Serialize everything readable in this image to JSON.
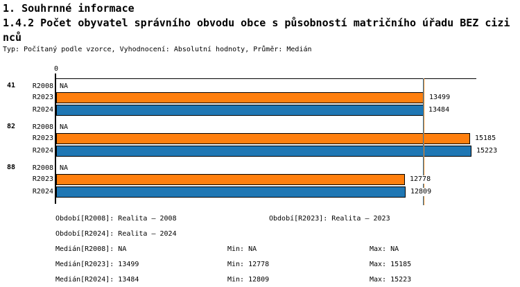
{
  "header": {
    "title": "1. Souhrnné informace",
    "subtitle_lines": [
      "1.4.2 Počet obyvatel správního obvodu obce s působností matričního úřadu BEZ cizi",
      "nců"
    ],
    "subtitle_full": "1.4.2 Počet obyvatel správního obvodu obce s působností matričního úřadu BEZ cizinců",
    "meta": "Typ: Počítaný podle vzorce, Vyhodnocení: Absolutní hodnoty, Průměr: Medián"
  },
  "chart_data": {
    "type": "bar",
    "orientation": "horizontal",
    "x_axis": {
      "min": 0,
      "zero_tick_label": "0",
      "max_visible": 15430,
      "gridlines": false
    },
    "categories": [
      "41",
      "82",
      "88"
    ],
    "series": [
      {
        "name": "R2008",
        "color": null,
        "values": [
          null,
          null,
          null
        ],
        "labels": [
          "NA",
          "NA",
          "NA"
        ]
      },
      {
        "name": "R2023",
        "color": "#FF7F0E",
        "values": [
          13499,
          15185,
          12778
        ],
        "labels": [
          "13499",
          "15185",
          "12778"
        ]
      },
      {
        "name": "R2024",
        "color": "#1F77B4",
        "values": [
          13484,
          15223,
          12809
        ],
        "labels": [
          "13484",
          "15223",
          "12809"
        ]
      }
    ],
    "median_lines": [
      {
        "series": "R2023",
        "value": 13499,
        "color": "#FF7F0E"
      },
      {
        "series": "R2024",
        "value": 13484,
        "color": "#1F77B4"
      }
    ],
    "colors": {
      "bar_border": "#000000",
      "axis": "#000000",
      "background": "#FFFFFF"
    }
  },
  "footer": {
    "obdobi_r2008": "Období[R2008]: Realita – 2008",
    "obdobi_r2023": "Období[R2023]: Realita – 2023",
    "obdobi_r2024": "Období[R2024]: Realita – 2024",
    "median_r2008": "Medián[R2008]: NA",
    "min_r2008": "Min: NA",
    "max_r2008": "Max: NA",
    "median_r2023": "Medián[R2023]: 13499",
    "min_r2023": "Min: 12778",
    "max_r2023": "Max: 15185",
    "median_r2024": "Medián[R2024]: 13484",
    "min_r2024": "Min: 12809",
    "max_r2024": "Max: 15223"
  }
}
